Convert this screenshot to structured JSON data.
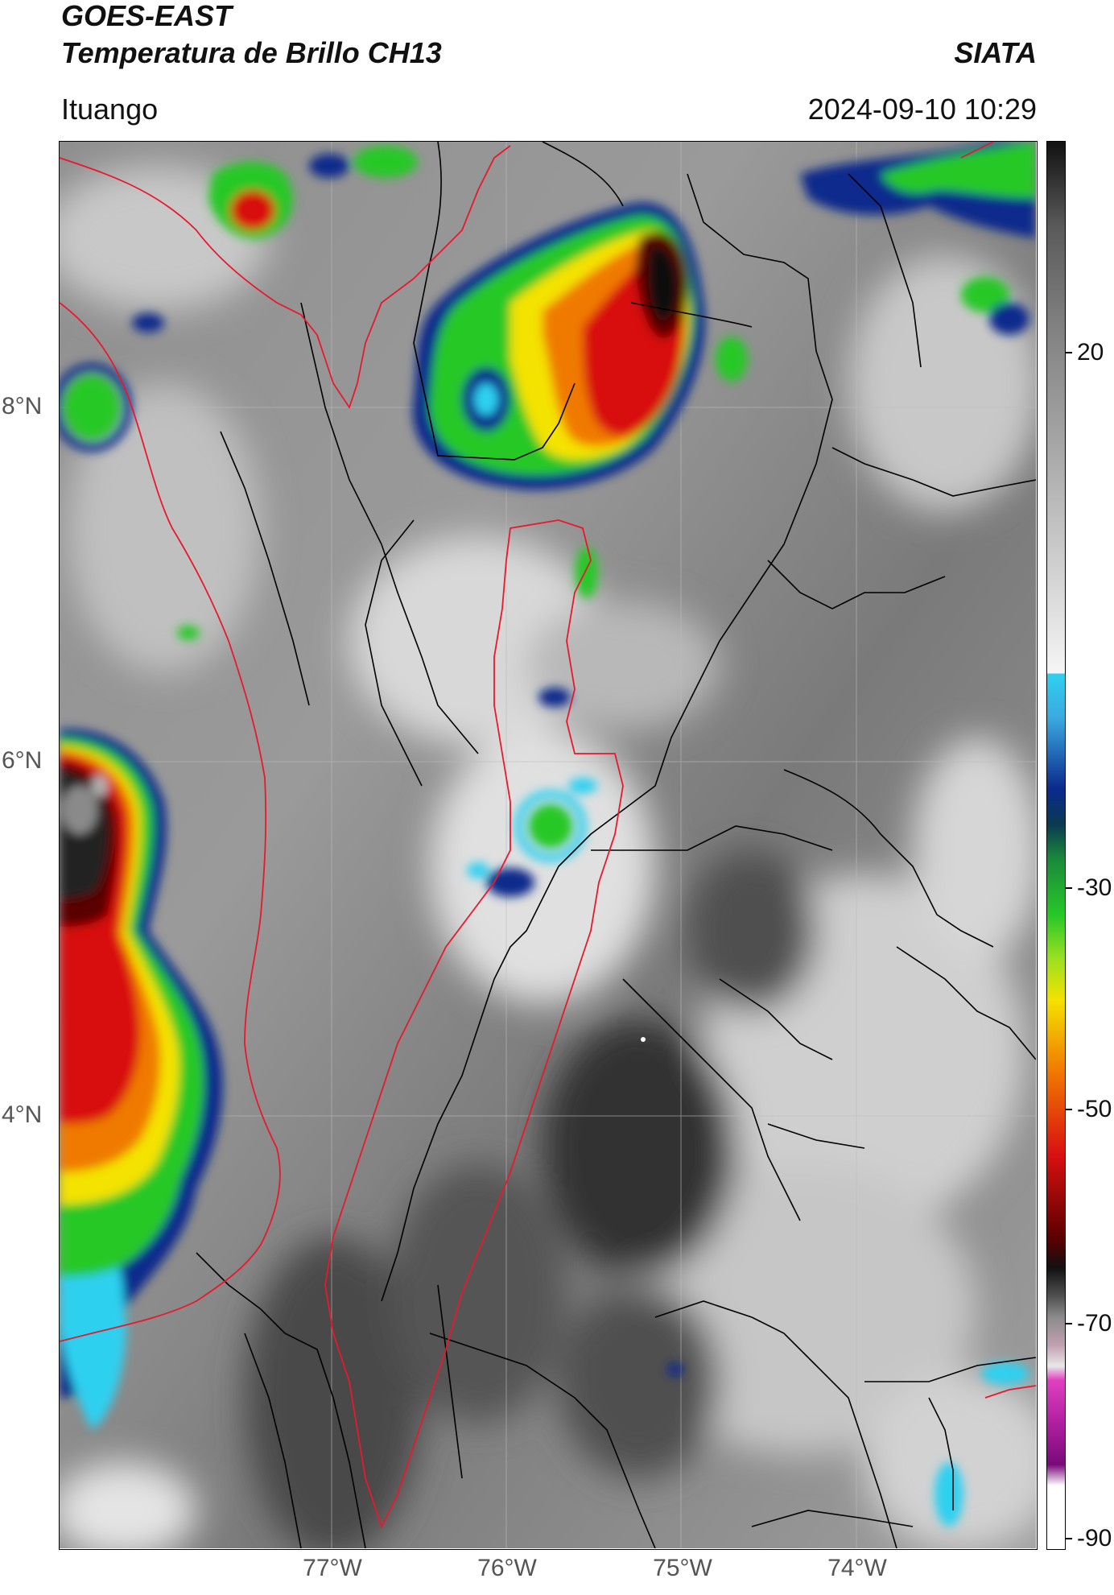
{
  "header": {
    "satellite": "GOES-EAST",
    "product": "Temperatura de Brillo CH13",
    "brand": "SIATA",
    "location": "Ituango",
    "timestamp": "2024-09-10 10:29"
  },
  "map": {
    "lat_labels": [
      "8°N",
      "6°N",
      "4°N"
    ],
    "lon_labels": [
      "77°W",
      "76°W",
      "75°W",
      "74°W"
    ],
    "region_color": "#e8192c",
    "border_color": "#000000"
  },
  "colorbar": {
    "labels": [
      "20",
      "-30",
      "-50",
      "-70",
      "-90"
    ],
    "colors": {
      "warm_gray_top": "#111111",
      "light_gray": "#e6e6e6",
      "cyan": "#2fd0f0",
      "blue": "#0a2a8c",
      "green": "#28c828",
      "yellow": "#f4e200",
      "orange": "#f07a00",
      "red": "#d81010",
      "dark_red": "#5a0000",
      "magenta": "#e040c0",
      "purple": "#7a0a7a"
    }
  }
}
